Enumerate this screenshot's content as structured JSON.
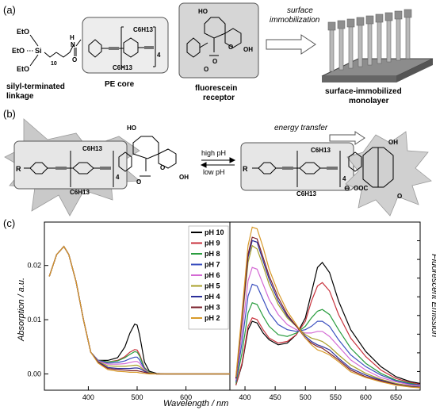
{
  "panel_a": {
    "label": "(a)",
    "linkage_label": "silyl-terminated linkage",
    "linkage_line1": "silyl-terminated",
    "linkage_line2": "linkage",
    "core_label": "PE core",
    "receptor_label": "fluorescein receptor",
    "receptor_line1": "fluorescein",
    "receptor_line2": "receptor",
    "arrow_label": "surface immobilization",
    "arrow_line1": "surface",
    "arrow_line2": "immobilization",
    "monolayer_label": "surface-immobilized monolayer",
    "monolayer_line1": "surface-immobilized",
    "monolayer_line2": "monolayer",
    "atoms": {
      "eto_1": "EtO",
      "eto_2": "EtO",
      "eto_3": "EtO",
      "si": "Si",
      "sub_10": "10",
      "n_h_1": "H",
      "n_1": "N",
      "n_2": "N",
      "n_h_2": "H",
      "o_urea": "O",
      "c6h13_top": "C6H13",
      "c6h13_bottom": "C6H13",
      "repeat_4": "4",
      "ho": "HO",
      "oh": "OH",
      "o_ring": "O",
      "o_lactone": "O",
      "o_carbonyl": "O"
    }
  },
  "panel_b": {
    "label": "(b)",
    "energy_label": "energy transfer",
    "high_ph": "high pH",
    "low_ph": "low pH",
    "atoms": {
      "r_left": "R",
      "r_right": "R",
      "c6h13_l_top": "C6H13",
      "c6h13_l_bottom": "C6H13",
      "c6h13_r_top": "C6H13",
      "c6h13_r_bottom": "C6H13",
      "repeat_l": "4",
      "repeat_r": "4",
      "ho_l": "HO",
      "oh_l": "OH",
      "o_l1": "O",
      "o_l2": "O",
      "oh_r": "OH",
      "o_r": "O",
      "ooc": "OOC",
      "minus": "⊖"
    }
  },
  "panel_c": {
    "label": "(c)",
    "ylabel_left": "Absorption / a.u.",
    "ylabel_right": "Fluorescent Emission",
    "xlabel": "Wavelength /  nm",
    "left_y_ticks": [
      "0.00",
      "0.01",
      "0.02"
    ],
    "left_x_ticks": [
      "400",
      "500",
      "600"
    ],
    "right_x_ticks": [
      "400",
      "450",
      "500",
      "550",
      "600",
      "650"
    ],
    "legend": [
      {
        "name": "pH 10",
        "color": "#000000"
      },
      {
        "name": "pH 9",
        "color": "#c8323c"
      },
      {
        "name": "pH 8",
        "color": "#2a9d3f"
      },
      {
        "name": "pH 7",
        "color": "#3a4fbf"
      },
      {
        "name": "pH 6",
        "color": "#d46ad4"
      },
      {
        "name": "pH 5",
        "color": "#a9a02a"
      },
      {
        "name": "pH 4",
        "color": "#2b2f9a"
      },
      {
        "name": "pH 3",
        "color": "#7a1f2a"
      },
      {
        "name": "pH 2",
        "color": "#d89a2a"
      }
    ]
  },
  "chart_data": [
    {
      "type": "line",
      "title": "",
      "xlabel": "Wavelength /  nm",
      "ylabel": "Absorption / a.u.",
      "xlim": [
        310,
        690
      ],
      "ylim": [
        -0.003,
        0.028
      ],
      "x": [
        320,
        335,
        350,
        360,
        375,
        390,
        405,
        420,
        440,
        460,
        475,
        485,
        495,
        500,
        505,
        515,
        525,
        540,
        560,
        600,
        650,
        690
      ],
      "series": [
        {
          "name": "pH 10",
          "values": [
            0.018,
            0.022,
            0.0235,
            0.022,
            0.017,
            0.01,
            0.004,
            0.0025,
            0.0025,
            0.003,
            0.005,
            0.0075,
            0.0092,
            0.009,
            0.0072,
            0.0022,
            0.0005,
            0.0001,
            0.0,
            0.0,
            0.0,
            0.0
          ]
        },
        {
          "name": "pH 9",
          "values": [
            0.018,
            0.022,
            0.0235,
            0.022,
            0.017,
            0.01,
            0.004,
            0.0025,
            0.0022,
            0.0025,
            0.0032,
            0.004,
            0.0045,
            0.0044,
            0.0036,
            0.0012,
            0.0003,
            0.0,
            0.0,
            0.0,
            0.0,
            0.0
          ]
        },
        {
          "name": "pH 8",
          "values": [
            0.018,
            0.022,
            0.0235,
            0.022,
            0.017,
            0.01,
            0.004,
            0.0025,
            0.0022,
            0.0024,
            0.003,
            0.0036,
            0.0041,
            0.004,
            0.0033,
            0.0011,
            0.0003,
            0.0,
            0.0,
            0.0,
            0.0,
            0.0
          ]
        },
        {
          "name": "pH 7",
          "values": [
            0.018,
            0.022,
            0.0235,
            0.022,
            0.017,
            0.01,
            0.004,
            0.0025,
            0.002,
            0.0021,
            0.0024,
            0.0028,
            0.0031,
            0.0031,
            0.0026,
            0.0009,
            0.0002,
            0.0,
            0.0,
            0.0,
            0.0,
            0.0
          ]
        },
        {
          "name": "pH 6",
          "values": [
            0.018,
            0.022,
            0.0235,
            0.022,
            0.017,
            0.01,
            0.004,
            0.0024,
            0.0018,
            0.0018,
            0.0019,
            0.0021,
            0.0023,
            0.0023,
            0.002,
            0.0008,
            0.0002,
            0.0,
            0.0,
            0.0,
            0.0,
            0.0
          ]
        },
        {
          "name": "pH 5",
          "values": [
            0.018,
            0.022,
            0.0235,
            0.022,
            0.017,
            0.01,
            0.004,
            0.0023,
            0.0015,
            0.0014,
            0.0014,
            0.0015,
            0.0016,
            0.0016,
            0.0014,
            0.0006,
            0.0002,
            0.0,
            0.0,
            0.0,
            0.0,
            0.0
          ]
        },
        {
          "name": "pH 4",
          "values": [
            0.018,
            0.022,
            0.0235,
            0.022,
            0.017,
            0.01,
            0.004,
            0.0022,
            0.0012,
            0.001,
            0.001,
            0.001,
            0.0011,
            0.0011,
            0.001,
            0.0005,
            0.0001,
            0.0,
            0.0,
            0.0,
            0.0,
            0.0
          ]
        },
        {
          "name": "pH 3",
          "values": [
            0.018,
            0.022,
            0.0235,
            0.022,
            0.017,
            0.01,
            0.004,
            0.0021,
            0.001,
            0.0008,
            0.0007,
            0.0006,
            0.0006,
            0.0006,
            0.0005,
            0.0003,
            0.0001,
            0.0,
            0.0,
            0.0,
            0.0,
            0.0
          ]
        },
        {
          "name": "pH 2",
          "values": [
            0.018,
            0.022,
            0.0235,
            0.022,
            0.017,
            0.01,
            0.004,
            0.002,
            0.0008,
            0.0005,
            0.0004,
            0.0003,
            0.0003,
            0.0003,
            0.0002,
            0.0001,
            0.0,
            0.0,
            0.0,
            0.0,
            0.0,
            0.0
          ]
        }
      ]
    },
    {
      "type": "line",
      "title": "",
      "xlabel": "Wavelength /  nm",
      "ylabel": "Fluorescent Emission",
      "xlim": [
        375,
        690
      ],
      "ylim": [
        0,
        1
      ],
      "x": [
        385,
        395,
        405,
        412,
        420,
        430,
        440,
        455,
        470,
        485,
        500,
        510,
        520,
        528,
        540,
        555,
        575,
        600,
        625,
        650,
        675,
        690
      ],
      "series": [
        {
          "name": "pH 10",
          "values": [
            0.03,
            0.15,
            0.36,
            0.41,
            0.4,
            0.34,
            0.3,
            0.27,
            0.28,
            0.33,
            0.43,
            0.58,
            0.73,
            0.76,
            0.7,
            0.53,
            0.36,
            0.23,
            0.14,
            0.08,
            0.05,
            0.04
          ]
        },
        {
          "name": "pH 9",
          "values": [
            0.03,
            0.16,
            0.38,
            0.43,
            0.42,
            0.36,
            0.31,
            0.28,
            0.29,
            0.33,
            0.41,
            0.53,
            0.62,
            0.64,
            0.59,
            0.45,
            0.31,
            0.2,
            0.12,
            0.07,
            0.045,
            0.035
          ]
        },
        {
          "name": "pH 8",
          "values": [
            0.04,
            0.22,
            0.46,
            0.52,
            0.51,
            0.44,
            0.38,
            0.33,
            0.32,
            0.34,
            0.38,
            0.43,
            0.47,
            0.48,
            0.45,
            0.36,
            0.25,
            0.16,
            0.1,
            0.06,
            0.04,
            0.03
          ]
        },
        {
          "name": "pH 7",
          "values": [
            0.05,
            0.28,
            0.56,
            0.63,
            0.62,
            0.54,
            0.46,
            0.39,
            0.36,
            0.35,
            0.36,
            0.38,
            0.41,
            0.41,
            0.38,
            0.3,
            0.21,
            0.14,
            0.09,
            0.055,
            0.035,
            0.03
          ]
        },
        {
          "name": "pH 6",
          "values": [
            0.06,
            0.34,
            0.65,
            0.73,
            0.72,
            0.63,
            0.54,
            0.45,
            0.39,
            0.36,
            0.34,
            0.34,
            0.35,
            0.35,
            0.32,
            0.26,
            0.18,
            0.12,
            0.075,
            0.05,
            0.03,
            0.025
          ]
        },
        {
          "name": "pH 5",
          "values": [
            0.07,
            0.4,
            0.76,
            0.86,
            0.84,
            0.74,
            0.63,
            0.51,
            0.43,
            0.38,
            0.33,
            0.31,
            0.3,
            0.29,
            0.26,
            0.21,
            0.15,
            0.1,
            0.065,
            0.04,
            0.025,
            0.02
          ]
        },
        {
          "name": "pH 4",
          "values": [
            0.07,
            0.42,
            0.79,
            0.89,
            0.88,
            0.77,
            0.66,
            0.53,
            0.44,
            0.38,
            0.32,
            0.29,
            0.27,
            0.26,
            0.24,
            0.19,
            0.13,
            0.09,
            0.06,
            0.035,
            0.022,
            0.018
          ]
        },
        {
          "name": "pH 3",
          "values": [
            0.07,
            0.43,
            0.81,
            0.91,
            0.9,
            0.79,
            0.68,
            0.55,
            0.45,
            0.38,
            0.31,
            0.28,
            0.26,
            0.25,
            0.22,
            0.18,
            0.12,
            0.08,
            0.055,
            0.033,
            0.02,
            0.016
          ]
        },
        {
          "name": "pH 2",
          "values": [
            0.08,
            0.46,
            0.86,
            0.97,
            0.96,
            0.85,
            0.72,
            0.58,
            0.47,
            0.39,
            0.31,
            0.27,
            0.24,
            0.23,
            0.21,
            0.17,
            0.11,
            0.075,
            0.05,
            0.03,
            0.018,
            0.014
          ]
        }
      ]
    }
  ]
}
